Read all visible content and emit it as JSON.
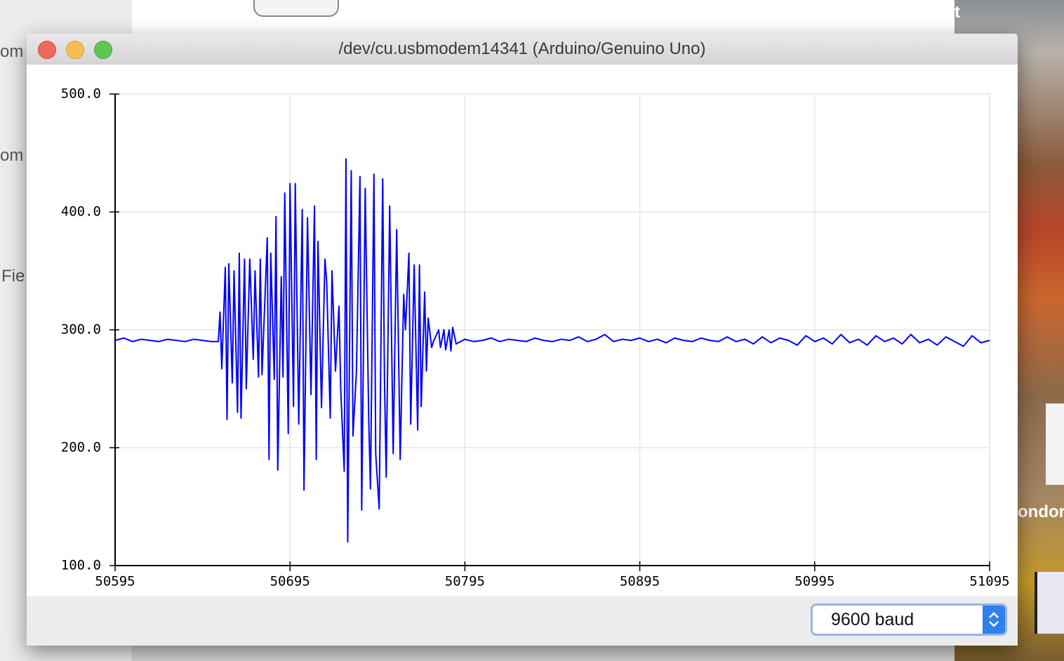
{
  "window": {
    "title": "/dev/cu.usbmodem14341 (Arduino/Genuino Uno)"
  },
  "baud_select": "9600 baud",
  "background": {
    "left_texts": [
      "om",
      "om",
      "Fie"
    ],
    "right_texts": [
      "t",
      "ondor"
    ]
  },
  "chart_data": {
    "type": "line",
    "x": [
      50595,
      50600,
      50605,
      50610,
      50615,
      50620,
      50625,
      50630,
      50635,
      50640,
      50645,
      50650,
      50654,
      50655,
      50656,
      50658,
      50659,
      50660,
      50662,
      50663,
      50665,
      50666,
      50667,
      50669,
      50670,
      50672,
      50674,
      50675,
      50677,
      50678,
      50679,
      50682,
      50683,
      50684,
      50686,
      50687,
      50688,
      50690,
      50691,
      50692,
      50694,
      50695,
      50697,
      50698,
      50700,
      50702,
      50703,
      50705,
      50707,
      50709,
      50710,
      50711,
      50713,
      50715,
      50716,
      50718,
      50719,
      50721,
      50723,
      50724,
      50726,
      50727,
      50728,
      50730,
      50731,
      50733,
      50735,
      50736,
      50738,
      50740,
      50741,
      50743,
      50744,
      50746,
      50748,
      50749,
      50750,
      50752,
      50754,
      50756,
      50758,
      50760,
      50761,
      50763,
      50764,
      50766,
      50768,
      50769,
      50770,
      50772,
      50773,
      50774,
      50776,
      50777,
      50780,
      50781,
      50783,
      50784,
      50786,
      50787,
      50788,
      50790,
      50795,
      50800,
      50805,
      50810,
      50815,
      50820,
      50825,
      50830,
      50835,
      50840,
      50845,
      50850,
      50855,
      50860,
      50865,
      50870,
      50875,
      50880,
      50885,
      50890,
      50895,
      50900,
      50905,
      50910,
      50915,
      50920,
      50925,
      50930,
      50935,
      50940,
      50945,
      50950,
      50955,
      50960,
      50965,
      50970,
      50975,
      50980,
      50985,
      50990,
      50995,
      51000,
      51005,
      51010,
      51015,
      51020,
      51025,
      51030,
      51035,
      51040,
      51045,
      51050,
      51055,
      51060,
      51065,
      51070,
      51075,
      51080,
      51085,
      51090,
      51095
    ],
    "series": [
      {
        "color": "#0000ff",
        "values": [
          291,
          293,
          290,
          292,
          291,
          290,
          292,
          291,
          290,
          292,
          291,
          290,
          290,
          315,
          267,
          353,
          224,
          356,
          255,
          350,
          230,
          365,
          225,
          360,
          250,
          360,
          275,
          350,
          260,
          360,
          262,
          378,
          190,
          365,
          258,
          396,
          181,
          345,
          260,
          416,
          212,
          424,
          235,
          424,
          220,
          402,
          164,
          395,
          245,
          405,
          190,
          375,
          234,
          360,
          340,
          225,
          350,
          265,
          320,
          250,
          180,
          445,
          120,
          435,
          210,
          265,
          430,
          147,
          420,
          225,
          165,
          432,
          195,
          148,
          428,
          260,
          175,
          405,
          195,
          385,
          190,
          330,
          300,
          365,
          220,
          355,
          215,
          355,
          235,
          332,
          265,
          310,
          285,
          290,
          300,
          285,
          300,
          283,
          300,
          282,
          302,
          288,
          292,
          290,
          291,
          293,
          290,
          292,
          291,
          290,
          293,
          291,
          290,
          292,
          291,
          294,
          290,
          292,
          296,
          290,
          292,
          291,
          293,
          290,
          292,
          289,
          293,
          291,
          290,
          293,
          291,
          290,
          294,
          290,
          292,
          288,
          294,
          289,
          293,
          291,
          287,
          295,
          290,
          293,
          288,
          296,
          289,
          292,
          287,
          295,
          290,
          293,
          288,
          296,
          289,
          292,
          287,
          294,
          290,
          286,
          295,
          289,
          291
        ]
      }
    ],
    "xlim": [
      50595,
      51095
    ],
    "xticks": [
      50595,
      50695,
      50795,
      50895,
      50995,
      51095
    ],
    "ylim": [
      100,
      500
    ],
    "yticks": [
      {
        "value": 100,
        "label": "100.0"
      },
      {
        "value": 200,
        "label": "200.0"
      },
      {
        "value": 300,
        "label": "300.0"
      },
      {
        "value": 400,
        "label": "400.0"
      },
      {
        "value": 500,
        "label": "500.0"
      }
    ],
    "grid": true
  }
}
